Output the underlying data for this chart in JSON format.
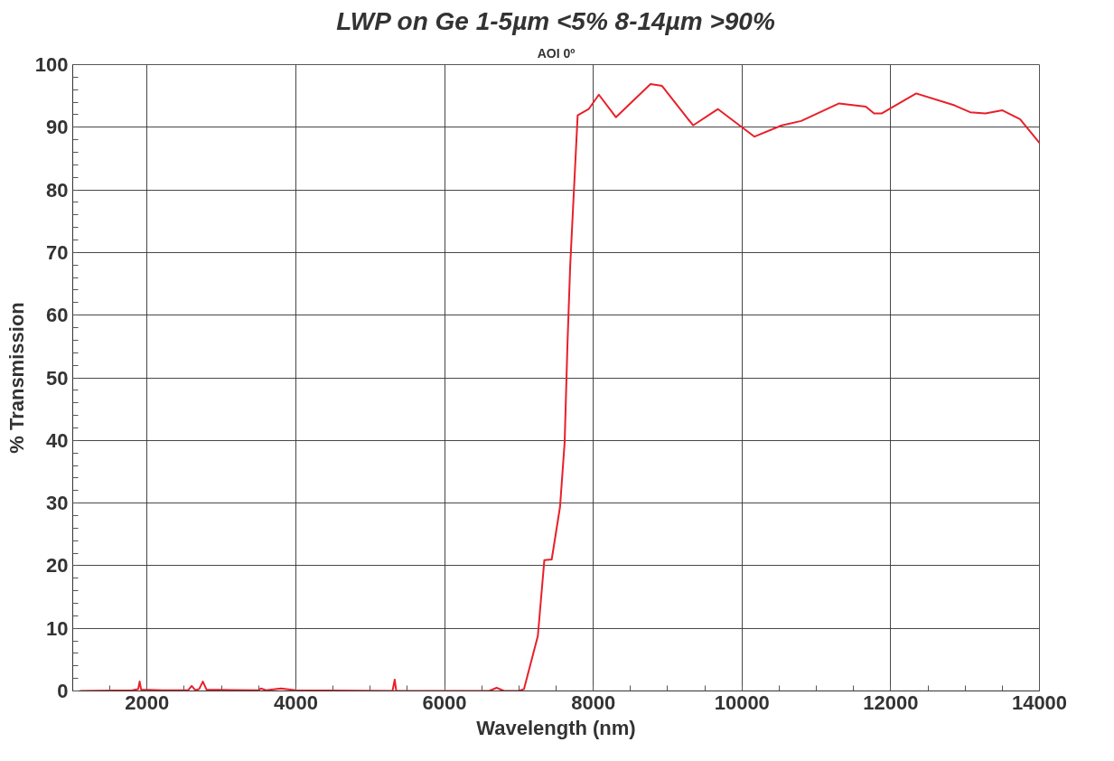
{
  "chart_data": {
    "type": "line",
    "title": "LWP on Ge 1-5µm <5% 8-14µm >90%",
    "subtitle": "AOI 0º",
    "xlabel": "Wavelength (nm)",
    "ylabel": "% Transmission",
    "xlim": [
      1000,
      14000
    ],
    "ylim": [
      0,
      100
    ],
    "xticks": [
      2000,
      4000,
      6000,
      8000,
      10000,
      12000,
      14000
    ],
    "yticks": [
      0,
      10,
      20,
      30,
      40,
      50,
      60,
      70,
      80,
      90,
      100
    ],
    "grid": true,
    "series": [
      {
        "color": "#e8202a",
        "x": [
          1100,
          1800,
          1880,
          1900,
          1920,
          2200,
          2550,
          2600,
          2650,
          2700,
          2750,
          2800,
          3500,
          3530,
          3600,
          3800,
          4000,
          5300,
          5330,
          5350,
          6600,
          6700,
          6800,
          7000,
          7068,
          7255,
          7342,
          7441,
          7553,
          7615,
          7652,
          7690,
          7790,
          7938,
          8075,
          8304,
          8770,
          8925,
          9342,
          9677,
          10168,
          10534,
          10795,
          11305,
          11665,
          11776,
          11876,
          12342,
          12857,
          13068,
          13273,
          13502,
          13739,
          13938,
          14000
        ],
        "values": [
          0,
          0.1,
          0.3,
          1.5,
          0.2,
          0.1,
          0.1,
          0.8,
          0.1,
          0.3,
          1.5,
          0.2,
          0.1,
          0.4,
          0.1,
          0.4,
          0.1,
          0,
          1.8,
          0,
          0,
          0.5,
          0,
          0,
          0.3,
          8.8,
          20.9,
          21,
          29.4,
          39.7,
          55,
          68,
          91.9,
          92.9,
          95.2,
          91.6,
          96.9,
          96.6,
          90.3,
          92.9,
          88.5,
          90.3,
          91,
          93.8,
          93.3,
          92.2,
          92.2,
          95.4,
          93.5,
          92.4,
          92.2,
          92.7,
          91.3,
          88.4,
          87.5
        ]
      }
    ]
  }
}
